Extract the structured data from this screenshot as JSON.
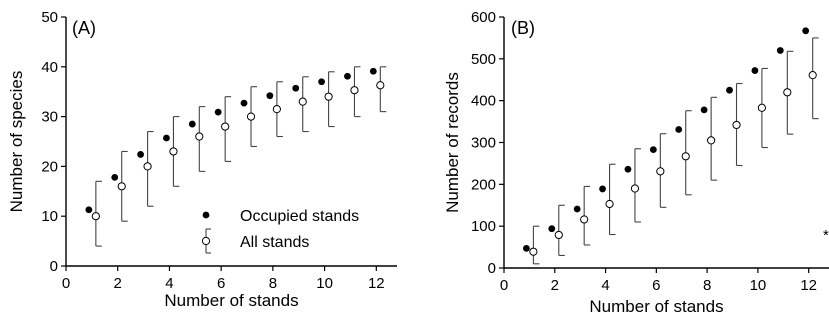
{
  "chart_data": [
    {
      "type": "scatter",
      "panel_label": "(A)",
      "xlabel": "Number of stands",
      "ylabel": "Number of species",
      "xlim": [
        0,
        12.8
      ],
      "ylim": [
        0,
        50
      ],
      "xticks": [
        0,
        2,
        4,
        6,
        8,
        10,
        12
      ],
      "yticks": [
        0,
        10,
        20,
        30,
        40,
        50
      ],
      "grid": false,
      "legend_position": "bottom-right",
      "series": [
        {
          "name": "Occupied stands",
          "marker": "filled-circle",
          "x": [
            1,
            2,
            3,
            4,
            5,
            6,
            7,
            8,
            9,
            10,
            11,
            12
          ],
          "y": [
            11.3,
            17.8,
            22.4,
            25.7,
            28.5,
            30.9,
            32.7,
            34.2,
            35.7,
            37.0,
            38.1,
            39.1
          ]
        },
        {
          "name": "All stands",
          "marker": "open-circle",
          "x": [
            1,
            2,
            3,
            4,
            5,
            6,
            7,
            8,
            9,
            10,
            11,
            12
          ],
          "y": [
            10.0,
            16.0,
            20.0,
            23.0,
            26.0,
            28.0,
            30.0,
            31.5,
            33.0,
            34.0,
            35.3,
            36.3
          ],
          "error_low": [
            4,
            9,
            12,
            16,
            19,
            21,
            24,
            26,
            27,
            28,
            30,
            31
          ],
          "error_high": [
            17,
            23,
            27,
            30,
            32,
            34,
            36,
            37,
            38,
            39,
            40,
            40
          ]
        }
      ]
    },
    {
      "type": "scatter",
      "panel_label": "(B)",
      "xlabel": "Number of stands",
      "ylabel": "Number of records",
      "xlim": [
        0,
        12.8
      ],
      "ylim": [
        0,
        600
      ],
      "xticks": [
        0,
        2,
        4,
        6,
        8,
        10,
        12
      ],
      "yticks": [
        0,
        100,
        200,
        300,
        400,
        500,
        600
      ],
      "grid": false,
      "annotation": "*",
      "series": [
        {
          "name": "Occupied stands",
          "marker": "filled-circle",
          "x": [
            1,
            2,
            3,
            4,
            5,
            6,
            7,
            8,
            9,
            10,
            11,
            12
          ],
          "y": [
            47,
            94,
            141,
            189,
            236,
            283,
            331,
            378,
            425,
            472,
            520,
            567
          ]
        },
        {
          "name": "All stands",
          "marker": "open-circle",
          "x": [
            1,
            2,
            3,
            4,
            5,
            6,
            7,
            8,
            9,
            10,
            11,
            12
          ],
          "y": [
            39,
            79,
            116,
            153,
            190,
            231,
            267,
            305,
            342,
            383,
            420,
            461
          ],
          "error_low": [
            10,
            30,
            55,
            80,
            110,
            145,
            175,
            210,
            245,
            288,
            320,
            357
          ],
          "error_high": [
            100,
            150,
            195,
            248,
            285,
            321,
            376,
            408,
            441,
            477,
            518,
            550
          ]
        }
      ]
    }
  ]
}
